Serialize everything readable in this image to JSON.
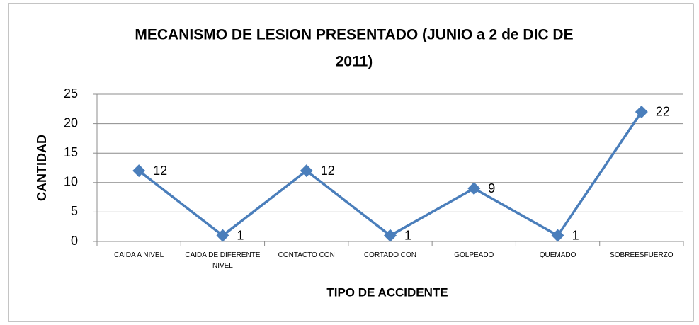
{
  "chart_data": {
    "type": "line",
    "title": [
      "MECANISMO DE LESION PRESENTADO (JUNIO a 2 de DIC DE",
      "2011)"
    ],
    "x_label": "TIPO DE ACCIDENTE",
    "y_label": "CANTIDAD",
    "categories": [
      "CAIDA A NIVEL",
      "CAIDA DE DIFERENTE NIVEL",
      "CONTACTO CON",
      "CORTADO CON",
      "GOLPEADO",
      "QUEMADO",
      "SOBREESFUERZO"
    ],
    "values": [
      12,
      1,
      12,
      1,
      9,
      1,
      22
    ],
    "color": "#4a7ebb",
    "ylim": [
      0,
      25
    ],
    "yticks": [
      0,
      5,
      10,
      15,
      20,
      25
    ],
    "grid": true
  }
}
